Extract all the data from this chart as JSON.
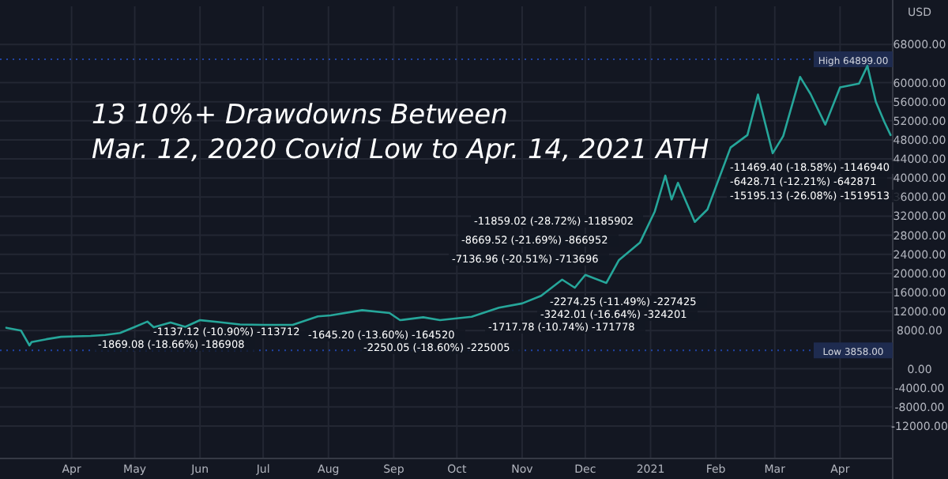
{
  "chart_data": {
    "type": "line",
    "title": "13 10%+ Drawdowns Between\nMar. 12, 2020 Covid Low to Apr. 14, 2021 ATH",
    "ylabel": "USD",
    "x": [
      "2020-03-01",
      "2020-03-08",
      "2020-03-12",
      "2020-03-13",
      "2020-03-20",
      "2020-03-27",
      "2020-04-03",
      "2020-04-10",
      "2020-04-17",
      "2020-04-24",
      "2020-04-30",
      "2020-05-07",
      "2020-05-10",
      "2020-05-18",
      "2020-05-25",
      "2020-06-01",
      "2020-06-10",
      "2020-06-20",
      "2020-07-01",
      "2020-07-15",
      "2020-07-27",
      "2020-08-02",
      "2020-08-17",
      "2020-08-30",
      "2020-09-04",
      "2020-09-15",
      "2020-09-23",
      "2020-10-08",
      "2020-10-21",
      "2020-11-01",
      "2020-11-10",
      "2020-11-20",
      "2020-11-26",
      "2020-12-01",
      "2020-12-11",
      "2020-12-17",
      "2020-12-27",
      "2021-01-03",
      "2021-01-08",
      "2021-01-11",
      "2021-01-14",
      "2021-01-22",
      "2021-01-28",
      "2021-02-08",
      "2021-02-16",
      "2021-02-21",
      "2021-02-28",
      "2021-03-05",
      "2021-03-13",
      "2021-03-18",
      "2021-03-25",
      "2021-04-01",
      "2021-04-10",
      "2021-04-14",
      "2021-04-18",
      "2021-04-22",
      "2021-04-25"
    ],
    "series": [
      {
        "color": "#26a69a",
        "values": [
          8600,
          8000,
          4900,
          5600,
          6200,
          6700,
          6800,
          6900,
          7100,
          7500,
          8600,
          9900,
          8700,
          9700,
          8800,
          10200,
          9800,
          9300,
          9200,
          9200,
          11000,
          11200,
          12300,
          11700,
          10200,
          10800,
          10200,
          10900,
          12800,
          13700,
          15300,
          18700,
          17000,
          19700,
          18000,
          22800,
          26500,
          33000,
          40500,
          35500,
          39000,
          30800,
          33400,
          46400,
          49000,
          57500,
          45200,
          48800,
          61200,
          57600,
          51200,
          59000,
          59800,
          63500,
          56000,
          51800,
          49000
        ]
      }
    ],
    "xlim": [
      "2020-02-27",
      "2021-04-26"
    ],
    "xticks": [
      {
        "value": "2020-04-01",
        "label": "Apr"
      },
      {
        "value": "2020-05-01",
        "label": "May"
      },
      {
        "value": "2020-06-01",
        "label": "Jun"
      },
      {
        "value": "2020-07-01",
        "label": "Jul"
      },
      {
        "value": "2020-08-01",
        "label": "Aug"
      },
      {
        "value": "2020-09-01",
        "label": "Sep"
      },
      {
        "value": "2020-10-01",
        "label": "Oct"
      },
      {
        "value": "2020-11-01",
        "label": "Nov"
      },
      {
        "value": "2020-12-01",
        "label": "Dec"
      },
      {
        "value": "2021-01-01",
        "label": "2021"
      },
      {
        "value": "2021-02-01",
        "label": "Feb"
      },
      {
        "value": "2021-03-01",
        "label": "Mar"
      },
      {
        "value": "2021-04-01",
        "label": "Apr"
      }
    ],
    "ylim": [
      -18800,
      76000
    ],
    "yticks": [
      {
        "value": -12000,
        "label": "-12000.00"
      },
      {
        "value": -8000,
        "label": "-8000.00"
      },
      {
        "value": -4000,
        "label": "-4000.00"
      },
      {
        "value": 0,
        "label": "0.00"
      },
      {
        "value": 8000,
        "label": "8000.00"
      },
      {
        "value": 12000,
        "label": "12000.00"
      },
      {
        "value": 16000,
        "label": "16000.00"
      },
      {
        "value": 20000,
        "label": "20000.00"
      },
      {
        "value": 24000,
        "label": "24000.00"
      },
      {
        "value": 28000,
        "label": "28000.00"
      },
      {
        "value": 32000,
        "label": "32000.00"
      },
      {
        "value": 36000,
        "label": "36000.00"
      },
      {
        "value": 40000,
        "label": "40000.00"
      },
      {
        "value": 44000,
        "label": "44000.00"
      },
      {
        "value": 48000,
        "label": "48000.00"
      },
      {
        "value": 52000,
        "label": "52000.00"
      },
      {
        "value": 56000,
        "label": "56000.00"
      },
      {
        "value": 60000,
        "label": "60000.00"
      },
      {
        "value": 68000,
        "label": "68000.00"
      }
    ],
    "grid": true,
    "ref_lines": [
      {
        "axis": "y",
        "value": 64899,
        "label": "High 64899.00",
        "color": "#2962ff"
      },
      {
        "axis": "y",
        "value": 3858,
        "label": "Low 3858.00",
        "color": "#2962ff"
      }
    ],
    "annotations": [
      "-1869.08 (-18.66%) -186908",
      "-1137.12 (-10.90%) -113712",
      "-1645.20 (-13.60%) -164520",
      "-2250.05 (-18.60%) -225005",
      "-1717.78 (-10.74%) -171778",
      "-3242.01 (-16.64%) -324201",
      "-2274.25 (-11.49%) -227425",
      "-7136.96 (-20.51%) -713696",
      "-11859.02 (-28.72%) -1185902",
      "-8669.52 (-21.69%) -866952",
      "-15195.13 (-26.08%) -1519513",
      "-6428.71 (-12.21%) -642871",
      "-11469.40 (-18.58%) -1146940"
    ]
  }
}
